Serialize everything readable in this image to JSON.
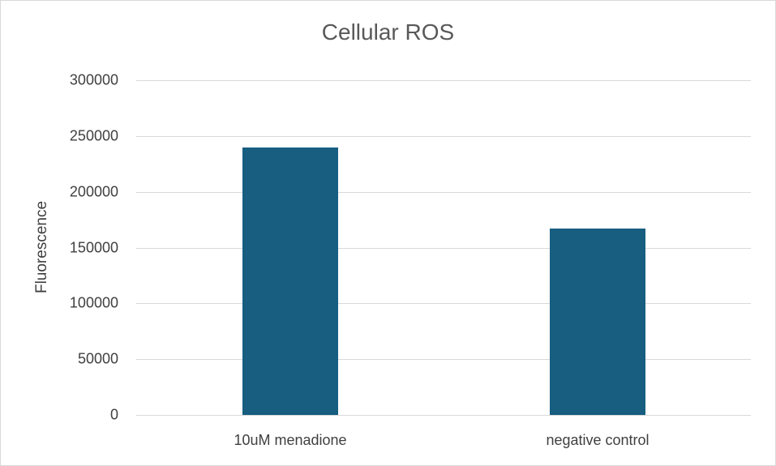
{
  "chart_data": {
    "type": "bar",
    "title": "Cellular ROS",
    "xlabel": "",
    "ylabel": "Fluorescence",
    "categories": [
      "10uM menadione",
      "negative control"
    ],
    "values": [
      240000,
      167000
    ],
    "ylim": [
      0,
      300000
    ],
    "yticks": [
      "0",
      "50000",
      "100000",
      "150000",
      "200000",
      "250000",
      "300000"
    ],
    "grid": true,
    "legend": "none",
    "bar_color": "#175e81"
  }
}
